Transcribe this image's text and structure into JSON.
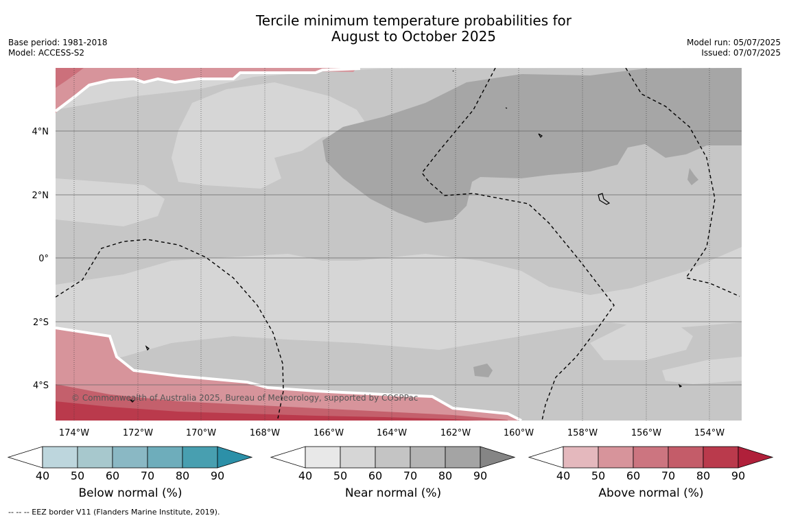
{
  "header": {
    "title_line1": "Tercile minimum temperature probabilities for",
    "title_line2": "August to October 2025",
    "base_period": "Base period: 1981-2018",
    "model": "Model: ACCESS-S2",
    "model_run": "Model run: 05/07/2025",
    "issued": "Issued: 07/07/2025"
  },
  "map": {
    "copyright": "© Commonwealth of Australia 2025, Bureau of Meteorology, supported by COSPPac",
    "lon_labels": [
      "174°W",
      "172°W",
      "170°W",
      "168°W",
      "166°W",
      "164°W",
      "162°W",
      "160°W",
      "158°W",
      "156°W",
      "154°W"
    ],
    "lat_labels": [
      "4°N",
      "2°N",
      "0°",
      "2°S",
      "4°S"
    ],
    "colors": {
      "near_40": "#d6d6d6",
      "near_50": "#c6c6c6",
      "near_60": "#a6a6a6",
      "above_50": "#d7949b",
      "above_60": "#cc707b",
      "above_70": "#c4606c",
      "above_80": "#ba3a4c"
    }
  },
  "colorbars": [
    {
      "title": "Below normal (%)",
      "ticks": [
        "40",
        "50",
        "60",
        "70",
        "80",
        "90"
      ],
      "colors": [
        "#ffffff",
        "#bdd6dd",
        "#a7c8cd",
        "#8ab8c4",
        "#6eadbb",
        "#489fb0",
        "#2c90a8"
      ]
    },
    {
      "title": "Near normal (%)",
      "ticks": [
        "40",
        "50",
        "60",
        "70",
        "80",
        "90"
      ],
      "colors": [
        "#ffffff",
        "#e8e8e8",
        "#d6d6d6",
        "#c4c4c4",
        "#b4b4b4",
        "#a4a4a4",
        "#858585"
      ]
    },
    {
      "title": "Above normal (%)",
      "ticks": [
        "40",
        "50",
        "60",
        "70",
        "80",
        "90"
      ],
      "colors": [
        "#ffffff",
        "#e4b8bd",
        "#d7949b",
        "#cc7580",
        "#c45c69",
        "#ba3a4c",
        "#b0203a"
      ]
    }
  ],
  "footnote": "--  --  -- EEZ border V11 (Flanders Marine Institute, 2019)."
}
